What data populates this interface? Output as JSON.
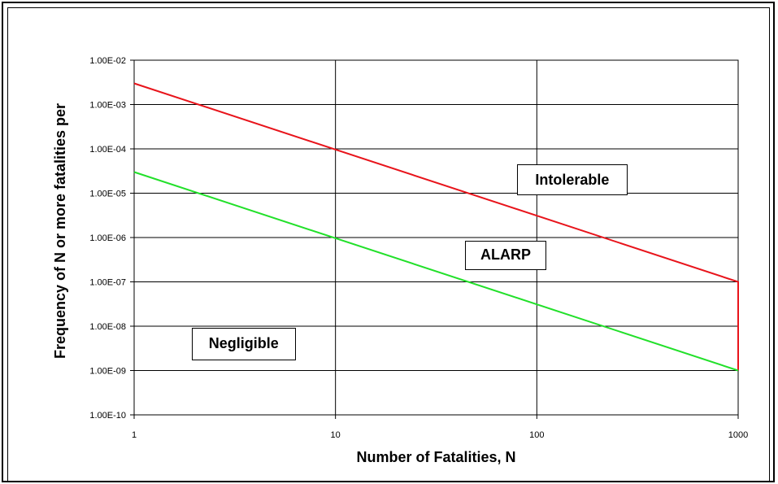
{
  "chart_data": {
    "type": "line",
    "xscale": "log",
    "yscale": "log",
    "xlim": [
      1,
      1000
    ],
    "ylim": [
      1e-10,
      0.01
    ],
    "grid": true,
    "xlabel": "Number of Fatalities, N",
    "ylabel": "Frequency of N or more fatalities per",
    "x_ticks": [
      "1",
      "10",
      "100",
      "1000"
    ],
    "y_ticks": [
      "1.00E-10",
      "1.00E-09",
      "1.00E-08",
      "1.00E-07",
      "1.00E-06",
      "1.00E-05",
      "1.00E-04",
      "1.00E-03",
      "1.00E-02"
    ],
    "series": [
      {
        "color": "#e8141b",
        "x": [
          1,
          1000,
          1000
        ],
        "y": [
          0.003,
          1e-07,
          1e-09
        ]
      },
      {
        "color": "#22e02a",
        "x": [
          1,
          1000
        ],
        "y": [
          3e-05,
          1e-09
        ]
      }
    ],
    "annotations": [
      {
        "text": "Intolerable",
        "x": 150,
        "y": 2e-05
      },
      {
        "text": "ALARP",
        "x": 70,
        "y": 4e-07
      },
      {
        "text": "Negligible",
        "x": 3.5,
        "y": 4e-09
      }
    ]
  }
}
